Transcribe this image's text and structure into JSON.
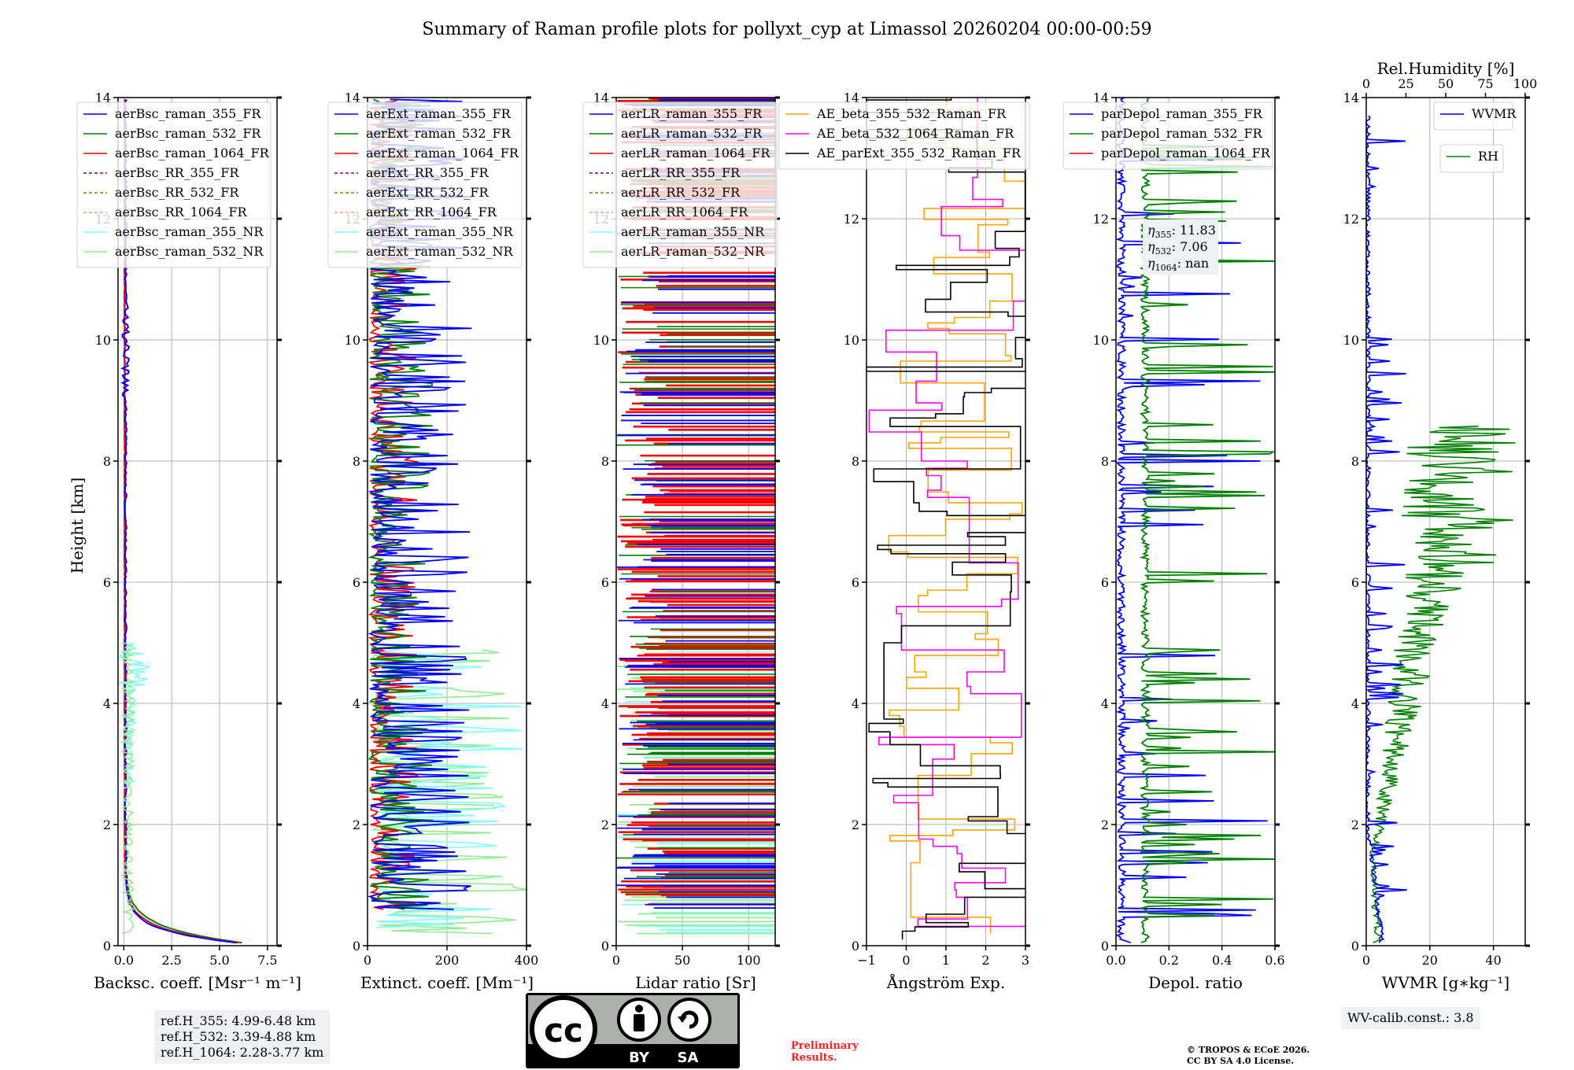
{
  "title": "Summary of Raman profile plots for pollyxt_cyp at Limassol 20260204 00:00-00:59",
  "ylabel": "Height [km]",
  "colors": {
    "blue": "#0000ff",
    "green": "#008000",
    "red": "#ff0000",
    "purple": "#800080",
    "olive": "#808000",
    "salmon": "#ffa07a",
    "cyan": "#7fffff",
    "lightgreen": "#90ee90",
    "orange": "#ffa500",
    "magenta": "#ff00ff",
    "black": "#000000"
  },
  "chart_data": [
    {
      "id": "bsc",
      "type": "line",
      "xlabel": "Backsc. coeff. [Msr⁻¹ m⁻¹]",
      "xlim": [
        -0.3,
        8
      ],
      "ylim": [
        0,
        14
      ],
      "xticks": [
        "0.0",
        "2.5",
        "5.0",
        "7.5"
      ],
      "xtick_values": [
        0,
        2.5,
        5,
        7.5
      ],
      "yticks": [
        "0",
        "2",
        "4",
        "6",
        "8",
        "10",
        "12",
        "14"
      ],
      "legend": [
        "aerBsc_raman_355_FR",
        "aerBsc_raman_532_FR",
        "aerBsc_raman_1064_FR",
        "aerBsc_RR_355_FR",
        "aerBsc_RR_532_FR",
        "aerBsc_RR_1064_FR",
        "aerBsc_raman_355_NR",
        "aerBsc_raman_532_NR"
      ]
    },
    {
      "id": "ext",
      "type": "line",
      "xlabel": "Extinct. coeff. [Mm⁻¹]",
      "xlim": [
        0,
        400
      ],
      "ylim": [
        0,
        14
      ],
      "xticks": [
        "0",
        "200",
        "400"
      ],
      "xtick_values": [
        0,
        200,
        400
      ],
      "yticks": [
        "0",
        "2",
        "4",
        "6",
        "8",
        "10",
        "12",
        "14"
      ],
      "legend": [
        "aerExt_raman_355_FR",
        "aerExt_raman_532_FR",
        "aerExt_raman_1064_FR",
        "aerExt_RR_355_FR",
        "aerExt_RR_532_FR",
        "aerExt_RR_1064_FR",
        "aerExt_raman_355_NR",
        "aerExt_raman_532_NR"
      ]
    },
    {
      "id": "lr",
      "type": "line",
      "xlabel": "Lidar ratio [Sr]",
      "xlim": [
        0,
        120
      ],
      "ylim": [
        0,
        14
      ],
      "xticks": [
        "0",
        "50",
        "100"
      ],
      "xtick_values": [
        0,
        50,
        100
      ],
      "yticks": [
        "0",
        "2",
        "4",
        "6",
        "8",
        "10",
        "12",
        "14"
      ],
      "legend": [
        "aerLR_raman_355_FR",
        "aerLR_raman_532_FR",
        "aerLR_raman_1064_FR",
        "aerLR_RR_355_FR",
        "aerLR_RR_532_FR",
        "aerLR_RR_1064_FR",
        "aerLR_raman_355_NR",
        "aerLR_raman_532_NR"
      ]
    },
    {
      "id": "ae",
      "type": "line",
      "xlabel": "Ångström Exp.",
      "xlim": [
        -1,
        3
      ],
      "ylim": [
        0,
        14
      ],
      "xticks": [
        "−1",
        "0",
        "1",
        "2",
        "3"
      ],
      "xtick_values": [
        -1,
        0,
        1,
        2,
        3
      ],
      "yticks": [
        "0",
        "2",
        "4",
        "6",
        "8",
        "10",
        "12",
        "14"
      ],
      "legend": [
        "AE_beta_355_532_Raman_FR",
        "AE_beta_532_1064_Raman_FR",
        "AE_parExt_355_532_Raman_FR"
      ]
    },
    {
      "id": "dep",
      "type": "line",
      "xlabel": "Depol. ratio",
      "xlim": [
        0,
        0.6
      ],
      "ylim": [
        0,
        14
      ],
      "xticks": [
        "0.0",
        "0.2",
        "0.4",
        "0.6"
      ],
      "xtick_values": [
        0,
        0.2,
        0.4,
        0.6
      ],
      "yticks": [
        "0",
        "2",
        "4",
        "6",
        "8",
        "10",
        "12",
        "14"
      ],
      "legend": [
        "parDepol_raman_355_FR",
        "parDepol_raman_532_FR",
        "parDepol_raman_1064_FR"
      ],
      "eta": {
        "eta355": "11.83",
        "eta532": "7.06",
        "eta1064": "nan"
      }
    },
    {
      "id": "wv",
      "type": "line",
      "xlabel": "WVMR [g∗kg⁻¹]",
      "xlim": [
        0,
        50
      ],
      "ylim": [
        0,
        14
      ],
      "xticks": [
        "0",
        "20",
        "40"
      ],
      "xtick_values": [
        0,
        20,
        40
      ],
      "yticks": [
        "0",
        "2",
        "4",
        "6",
        "8",
        "10",
        "12",
        "14"
      ],
      "top_xlabel": "Rel.Humidity [%]",
      "top_xticks": [
        "0",
        "25",
        "50",
        "75",
        "100"
      ],
      "top_xtick_values": [
        0,
        25,
        50,
        75,
        100
      ],
      "legend_wvmr": "WVMR",
      "legend_rh": "RH"
    }
  ],
  "notes": {
    "refH355": "ref.H_355: 4.99-6.48 km",
    "refH532": "ref.H_532: 3.39-4.88 km",
    "refH1064": "ref.H_1064: 2.28-3.77 km",
    "wv_calib": "WV-calib.const.: 3.8",
    "preliminary_1": "Preliminary",
    "preliminary_2": "Results.",
    "copyright_1": "© TROPOS & ECoE 2026.",
    "copyright_2": "CC BY SA 4.0 License.",
    "cc_badge_cc": "cc",
    "cc_badge_by": "BY",
    "cc_badge_sa": "SA"
  }
}
